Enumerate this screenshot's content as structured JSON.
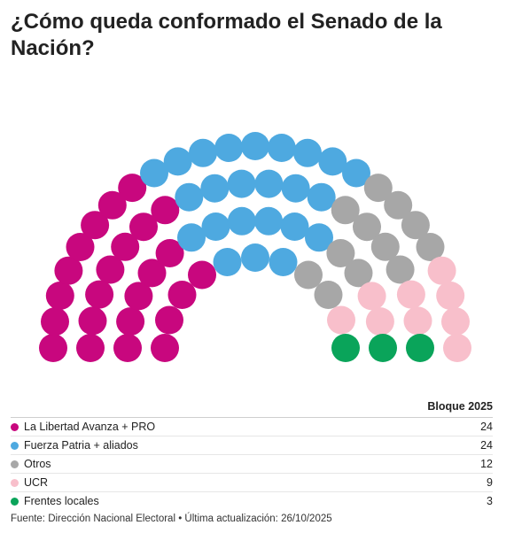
{
  "title": "¿Cómo queda conformado el Senado de la Nación?",
  "chart_data": {
    "type": "parliament",
    "value_header": "Bloque 2025",
    "total_seats": 72,
    "series": [
      {
        "name": "La Libertad Avanza + PRO",
        "value": 24,
        "color": "#c8077e"
      },
      {
        "name": "Fuerza Patria + aliados",
        "value": 24,
        "color": "#4ea9e0"
      },
      {
        "name": "Otros",
        "value": 12,
        "color": "#a7a7a7"
      },
      {
        "name": "UCR",
        "value": 9,
        "color": "#f8bfcb"
      },
      {
        "name": "Frentes locales",
        "value": 3,
        "color": "#0aa45a"
      }
    ]
  },
  "footer": {
    "source": "Fuente: Dirección Nacional Electoral • Última actualización: 26/10/2025"
  }
}
